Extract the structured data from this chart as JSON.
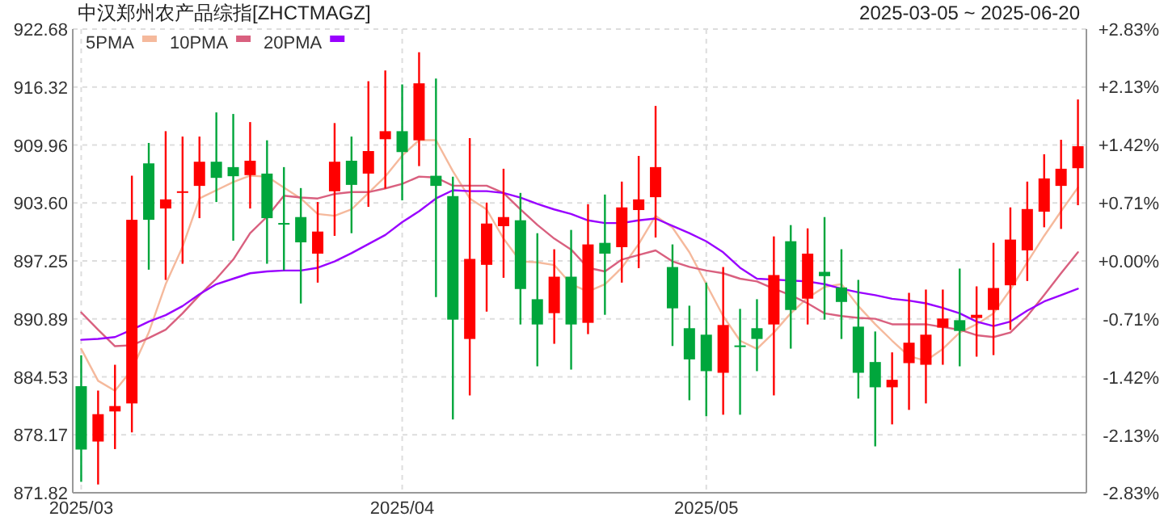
{
  "chart_data": {
    "type": "candlestick",
    "title": "中汉郑州农产品综指[ZHCTMAGZ]",
    "subtitle": "2025-03-05 ~ 2025-06-20",
    "categories": [
      "2025/03",
      null,
      null,
      null,
      null,
      null,
      null,
      null,
      null,
      null,
      null,
      null,
      null,
      null,
      null,
      null,
      null,
      null,
      null,
      "2025/04",
      null,
      null,
      null,
      null,
      null,
      null,
      null,
      null,
      null,
      null,
      null,
      null,
      null,
      null,
      null,
      null,
      null,
      "2025/05",
      null,
      null,
      null,
      null,
      null,
      null,
      null,
      null,
      null,
      null,
      null,
      null,
      null,
      null,
      null,
      null,
      null,
      null,
      null,
      null,
      null,
      null
    ],
    "ohlc": [
      [
        883.51,
        886.9,
        873.02,
        876.56
      ],
      [
        877.44,
        883.03,
        872.73,
        880.44
      ],
      [
        880.74,
        885.86,
        876.61,
        881.33
      ],
      [
        881.62,
        906.59,
        878.44,
        901.76
      ],
      [
        907.95,
        910.19,
        896.29,
        901.76
      ],
      [
        903.0,
        911.48,
        895.17,
        904.0
      ],
      [
        904.77,
        910.89,
        896.94,
        904.89
      ],
      [
        905.48,
        910.89,
        901.94,
        908.13
      ],
      [
        908.13,
        913.54,
        903.71,
        906.36
      ],
      [
        907.54,
        913.37,
        899.47,
        906.54
      ],
      [
        906.66,
        912.48,
        903.0,
        908.24
      ],
      [
        906.83,
        910.48,
        896.94,
        901.94
      ],
      [
        901.41,
        907.54,
        896.23,
        901.29
      ],
      [
        902.06,
        905.24,
        892.58,
        899.29
      ],
      [
        898.05,
        903.71,
        894.87,
        900.47
      ],
      [
        904.89,
        912.37,
        900.0,
        908.13
      ],
      [
        908.24,
        910.89,
        900.29,
        905.59
      ],
      [
        906.83,
        916.96,
        903.18,
        909.3
      ],
      [
        910.6,
        918.14,
        905.18,
        911.48
      ],
      [
        911.48,
        916.61,
        903.89,
        909.19
      ],
      [
        910.48,
        920.14,
        907.65,
        916.73
      ],
      [
        906.59,
        917.26,
        893.28,
        905.48
      ],
      [
        904.36,
        906.48,
        879.85,
        890.81
      ],
      [
        888.69,
        910.72,
        882.5,
        897.47
      ],
      [
        896.82,
        903.65,
        891.69,
        901.35
      ],
      [
        901.06,
        907.36,
        895.4,
        902.06
      ],
      [
        901.71,
        904.71,
        890.28,
        894.17
      ],
      [
        893.05,
        900.29,
        885.69,
        890.28
      ],
      [
        891.52,
        898.53,
        888.16,
        895.52
      ],
      [
        895.52,
        900.65,
        885.33,
        890.28
      ],
      [
        890.46,
        903.47,
        889.22,
        899.06
      ],
      [
        899.23,
        904.53,
        891.34,
        898.05
      ],
      [
        898.76,
        905.95,
        894.87,
        903.12
      ],
      [
        902.83,
        908.77,
        896.46,
        904.0
      ],
      [
        904.24,
        914.25,
        899.82,
        907.54
      ],
      [
        896.58,
        899.06,
        887.92,
        892.05
      ],
      [
        889.87,
        892.34,
        881.97,
        886.45
      ],
      [
        889.16,
        894.87,
        880.21,
        885.16
      ],
      [
        884.98,
        896.58,
        880.38,
        890.22
      ],
      [
        887.98,
        891.99,
        880.38,
        887.86
      ],
      [
        889.87,
        893.05,
        885.16,
        888.69
      ],
      [
        890.28,
        899.94,
        882.5,
        895.7
      ],
      [
        899.41,
        901.18,
        887.63,
        891.87
      ],
      [
        893.11,
        900.82,
        890.28,
        898.05
      ],
      [
        896.05,
        902.06,
        890.81,
        895.58
      ],
      [
        894.34,
        898.53,
        888.69,
        892.75
      ],
      [
        890.04,
        895.17,
        882.15,
        884.98
      ],
      [
        886.16,
        889.51,
        876.91,
        883.39
      ],
      [
        883.39,
        887.22,
        879.32,
        884.21
      ],
      [
        886.04,
        893.75,
        880.91,
        888.28
      ],
      [
        885.86,
        894.11,
        881.62,
        889.16
      ],
      [
        889.93,
        894.11,
        885.86,
        890.93
      ],
      [
        890.75,
        896.41,
        885.69,
        889.57
      ],
      [
        890.99,
        894.46,
        886.75,
        891.34
      ],
      [
        891.87,
        899.23,
        886.92,
        894.28
      ],
      [
        894.58,
        903.12,
        889.69,
        899.59
      ],
      [
        898.41,
        905.95,
        895.05,
        902.94
      ],
      [
        902.65,
        908.95,
        900.94,
        906.3
      ],
      [
        905.48,
        910.54,
        900.76,
        907.36
      ],
      [
        907.42,
        914.96,
        903.36,
        909.83
      ]
    ],
    "colors": [
      "#00a63c",
      "#ff0000",
      "#ff0000",
      "#ff0000",
      "#00a63c",
      "#ff0000",
      "#ff0000",
      "#ff0000",
      "#00a63c",
      "#00a63c",
      "#ff0000",
      "#00a63c",
      "#00a63c",
      "#00a63c",
      "#ff0000",
      "#ff0000",
      "#00a63c",
      "#ff0000",
      "#ff0000",
      "#00a63c",
      "#ff0000",
      "#00a63c",
      "#00a63c",
      "#ff0000",
      "#ff0000",
      "#ff0000",
      "#00a63c",
      "#00a63c",
      "#ff0000",
      "#00a63c",
      "#ff0000",
      "#00a63c",
      "#ff0000",
      "#ff0000",
      "#ff0000",
      "#00a63c",
      "#00a63c",
      "#00a63c",
      "#ff0000",
      "#00a63c",
      "#00a63c",
      "#ff0000",
      "#00a63c",
      "#ff0000",
      "#00a63c",
      "#00a63c",
      "#00a63c",
      "#00a63c",
      "#ff0000",
      "#ff0000",
      "#ff0000",
      "#ff0000",
      "#00a63c",
      "#ff0000",
      "#ff0000",
      "#ff0000",
      "#ff0000",
      "#ff0000",
      "#ff0000",
      "#ff0000"
    ],
    "series": [
      {
        "name": "5PMA",
        "type": "line",
        "color": "#f5b99c",
        "values": [
          887.6,
          884.1,
          883.0,
          885.3,
          889.4,
          894.7,
          898.8,
          904.1,
          905.0,
          905.9,
          906.6,
          906.5,
          905.3,
          904.1,
          902.4,
          902.2,
          902.9,
          904.7,
          906.5,
          908.8,
          910.5,
          910.5,
          907.1,
          904.1,
          902.9,
          899.7,
          897.2,
          897.1,
          896.8,
          894.7,
          893.9,
          894.7,
          896.5,
          899.1,
          902.2,
          900.9,
          898.2,
          894.7,
          891.2,
          888.5,
          887.6,
          889.4,
          891.5,
          893.2,
          894.4,
          894.7,
          892.3,
          890.3,
          888.5,
          886.8,
          886.3,
          887.6,
          889.4,
          890.3,
          891.5,
          894.1,
          897.1,
          900.0,
          902.7,
          905.3
        ]
      },
      {
        "name": "10PMA",
        "type": "line",
        "color": "#d9607f",
        "values": [
          891.6,
          889.7,
          887.9,
          888.0,
          888.8,
          889.7,
          891.5,
          893.5,
          895.3,
          897.4,
          900.3,
          902.1,
          904.4,
          904.2,
          904.1,
          904.6,
          904.8,
          904.8,
          905.2,
          905.7,
          906.5,
          906.4,
          905.5,
          905.5,
          905.5,
          904.7,
          902.9,
          901.2,
          899.7,
          898.5,
          896.5,
          896.1,
          897.4,
          897.9,
          898.4,
          897.2,
          896.6,
          896.2,
          895.9,
          895.3,
          895.0,
          894.2,
          893.5,
          892.6,
          891.5,
          891.2,
          891.0,
          890.9,
          890.3,
          890.3,
          890.3,
          890.0,
          889.7,
          889.1,
          888.9,
          889.4,
          891.2,
          893.5,
          895.9,
          898.2
        ]
      },
      {
        "name": "20PMA",
        "type": "line",
        "color": "#9900ff",
        "values": [
          888.6,
          888.7,
          888.9,
          889.7,
          890.6,
          891.3,
          892.3,
          893.6,
          894.7,
          895.3,
          895.9,
          896.1,
          896.2,
          896.2,
          896.5,
          897.2,
          898.1,
          899.1,
          900.1,
          901.5,
          902.7,
          904.1,
          905.0,
          904.9,
          904.9,
          904.7,
          904.2,
          903.5,
          902.9,
          902.4,
          901.7,
          901.4,
          901.4,
          901.7,
          901.9,
          901.1,
          900.3,
          899.4,
          898.2,
          896.5,
          895.3,
          895.2,
          895.1,
          895.0,
          894.7,
          894.2,
          893.8,
          893.5,
          893.1,
          892.9,
          892.6,
          892.1,
          891.5,
          890.6,
          890.1,
          890.6,
          891.8,
          892.8,
          893.5,
          894.2
        ]
      }
    ],
    "ylim": [
      871.82,
      922.68
    ],
    "yticks": [
      922.68,
      916.32,
      909.96,
      {
        "value": 903.6,
        "label": "903.60"
      },
      897.25,
      890.89,
      884.53,
      878.17,
      871.82
    ],
    "y2lim": [
      -2.83,
      2.83
    ],
    "y2ticks": [
      {
        "value": 2.83,
        "label": "+2.83%"
      },
      {
        "value": 2.13,
        "label": "+2.13%"
      },
      {
        "value": 1.42,
        "label": "+1.42%"
      },
      {
        "value": 0.71,
        "label": "+0.71%"
      },
      {
        "value": 0,
        "label": "+0.00%"
      },
      {
        "value": -0.71,
        "label": "-0.71%"
      },
      {
        "value": -1.42,
        "label": "-1.42%"
      },
      {
        "value": -2.13,
        "label": "-2.13%"
      },
      {
        "value": -2.83,
        "label": "-2.83%"
      }
    ],
    "grid": true,
    "legend": "top left"
  }
}
